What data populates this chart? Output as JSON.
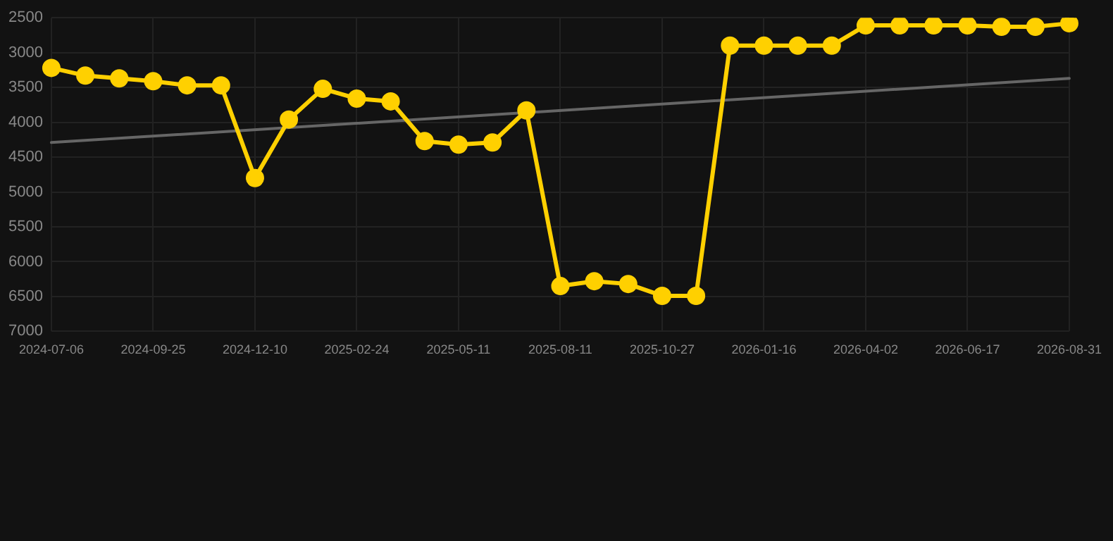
{
  "chart_data": {
    "type": "line",
    "categories": [
      "2024-07-06",
      null,
      null,
      "2024-09-25",
      null,
      null,
      "2024-12-10",
      null,
      null,
      "2025-02-24",
      null,
      null,
      "2025-05-11",
      null,
      null,
      "2025-08-11",
      null,
      null,
      "2025-10-27",
      null,
      null,
      "2026-01-16",
      null,
      null,
      "2026-04-02",
      null,
      null,
      "2026-06-17",
      null,
      null,
      "2026-08-31"
    ],
    "series": [
      {
        "color": "#ffd000",
        "marker": "circle",
        "values": [
          3220,
          3330,
          3370,
          3410,
          3470,
          3470,
          4800,
          3960,
          3520,
          3660,
          3700,
          4270,
          4320,
          4290,
          3830,
          6350,
          6280,
          6320,
          6490,
          6490,
          2900,
          2900,
          2900,
          2900,
          2610,
          2610,
          2610,
          2610,
          2630,
          2630,
          2580
        ]
      },
      {
        "type": "line",
        "color": "#666666",
        "marker": "none",
        "values": [
          4290,
          null,
          null,
          null,
          null,
          null,
          null,
          null,
          null,
          null,
          null,
          null,
          null,
          null,
          null,
          null,
          null,
          null,
          null,
          null,
          null,
          null,
          null,
          null,
          null,
          null,
          null,
          null,
          null,
          null,
          3370
        ]
      }
    ],
    "ylim": [
      7000,
      2500
    ],
    "yticks": [
      2500,
      3000,
      3500,
      4000,
      4500,
      5000,
      5500,
      6000,
      6500,
      7000
    ],
    "grid": true
  }
}
